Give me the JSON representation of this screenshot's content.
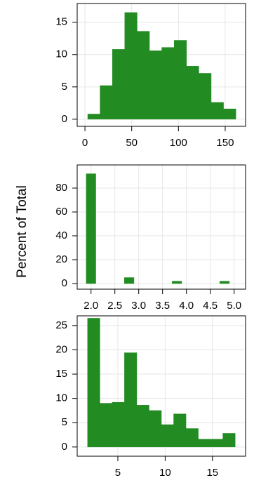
{
  "chart_data": [
    {
      "type": "histogram",
      "color": "#228b22",
      "bins": [
        3,
        16.2,
        29.4,
        42.6,
        55.8,
        69,
        82.2,
        95.4,
        108.6,
        121.8,
        135,
        148.2,
        161.4
      ],
      "values": [
        0.8,
        5.2,
        10.8,
        16.5,
        13.6,
        10.6,
        11.1,
        12.2,
        8.2,
        7.1,
        2.6,
        1.6
      ],
      "xlim": [
        -8.3,
        171.8
      ],
      "ylim": [
        -1.1,
        17.9
      ],
      "xticks": [
        0,
        50,
        100,
        150
      ],
      "yticks": [
        0,
        5,
        10,
        15
      ],
      "grid": true
    },
    {
      "type": "histogram",
      "color": "#228b22",
      "ylabel": "Percent of Total",
      "bins": [
        1.9,
        2.1,
        2.3,
        2.5,
        2.7,
        2.9,
        3.1,
        3.3,
        3.5,
        3.7,
        3.9,
        4.1,
        4.3,
        4.5,
        4.7,
        4.9,
        5.1
      ],
      "values": [
        92,
        0,
        0,
        0,
        5,
        0,
        0,
        0,
        0,
        2,
        0,
        0,
        0,
        0,
        2,
        0
      ],
      "xlim": [
        1.71,
        5.24
      ],
      "ylim": [
        -4.7,
        99.4
      ],
      "xticks": [
        {
          "value": 2,
          "label": "2.0"
        },
        2.5,
        {
          "value": 3,
          "label": "3.0"
        },
        3.5,
        {
          "value": 4,
          "label": "4.0"
        },
        4.5,
        {
          "value": 5,
          "label": "5.0"
        }
      ],
      "yticks": [
        0,
        20,
        40,
        60,
        80
      ],
      "grid": true
    },
    {
      "type": "histogram",
      "color": "#228b22",
      "bins": [
        1.8,
        3.1,
        4.4,
        5.7,
        7.0,
        8.3,
        9.6,
        10.9,
        12.2,
        13.5,
        14.8,
        16.1,
        17.4
      ],
      "values": [
        26.5,
        9,
        9.2,
        19.4,
        8.6,
        7.5,
        4.6,
        6.8,
        3.8,
        1.6,
        1.6,
        2.8
      ],
      "xlim": [
        0.7,
        18.5
      ],
      "ylim": [
        -1.9,
        27
      ],
      "xticks": [
        5,
        10,
        15
      ],
      "yticks": [
        0,
        5,
        10,
        15,
        20,
        25
      ],
      "grid": true
    }
  ]
}
